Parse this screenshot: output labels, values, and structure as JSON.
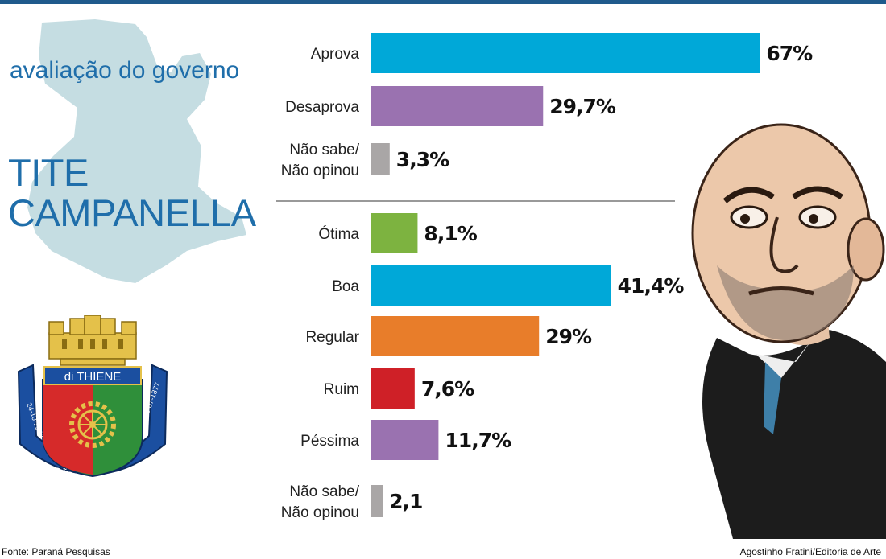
{
  "header": {
    "subtitle": "avaliação do governo",
    "name_line1": "TITE",
    "name_line2": "CAMPANELLA"
  },
  "crest": {
    "banner": "di THIENE",
    "ribbon_left": "24-10-1948",
    "ribbon_bottom": "SÃO CAETANO DO SUL",
    "ribbon_right": "28-07-1877"
  },
  "colors": {
    "title": "#1f6eaa",
    "map": "#c5dde2",
    "cyan": "#00a8d8",
    "purple": "#9a72b0",
    "gray": "#a9a6a6",
    "green": "#7db340",
    "orange": "#e87d2a",
    "red": "#cf2027"
  },
  "chart_data": [
    {
      "type": "bar",
      "orientation": "horizontal",
      "categories": [
        "Aprova",
        "Desaprova",
        "Não sabe/\nNão opinou"
      ],
      "values": [
        67,
        29.7,
        3.3
      ],
      "value_labels": [
        "67%",
        "29,7%",
        "3,3%"
      ],
      "colors": [
        "#00a8d8",
        "#9a72b0",
        "#a9a6a6"
      ],
      "xlim": [
        0,
        70
      ]
    },
    {
      "type": "bar",
      "orientation": "horizontal",
      "categories": [
        "Ótima",
        "Boa",
        "Regular",
        "Ruim",
        "Péssima",
        "Não sabe/\nNão opinou"
      ],
      "values": [
        8.1,
        41.4,
        29,
        7.6,
        11.7,
        2.1
      ],
      "value_labels": [
        "8,1%",
        "41,4%",
        "29%",
        "7,6%",
        "11,7%",
        "2,1"
      ],
      "colors": [
        "#7db340",
        "#00a8d8",
        "#e87d2a",
        "#cf2027",
        "#9a72b0",
        "#a9a6a6"
      ],
      "xlim": [
        0,
        70
      ]
    }
  ],
  "footer": {
    "source": "Fonte: Paraná Pesquisas",
    "credit": "Agostinho Fratini/Editoria de Arte"
  }
}
